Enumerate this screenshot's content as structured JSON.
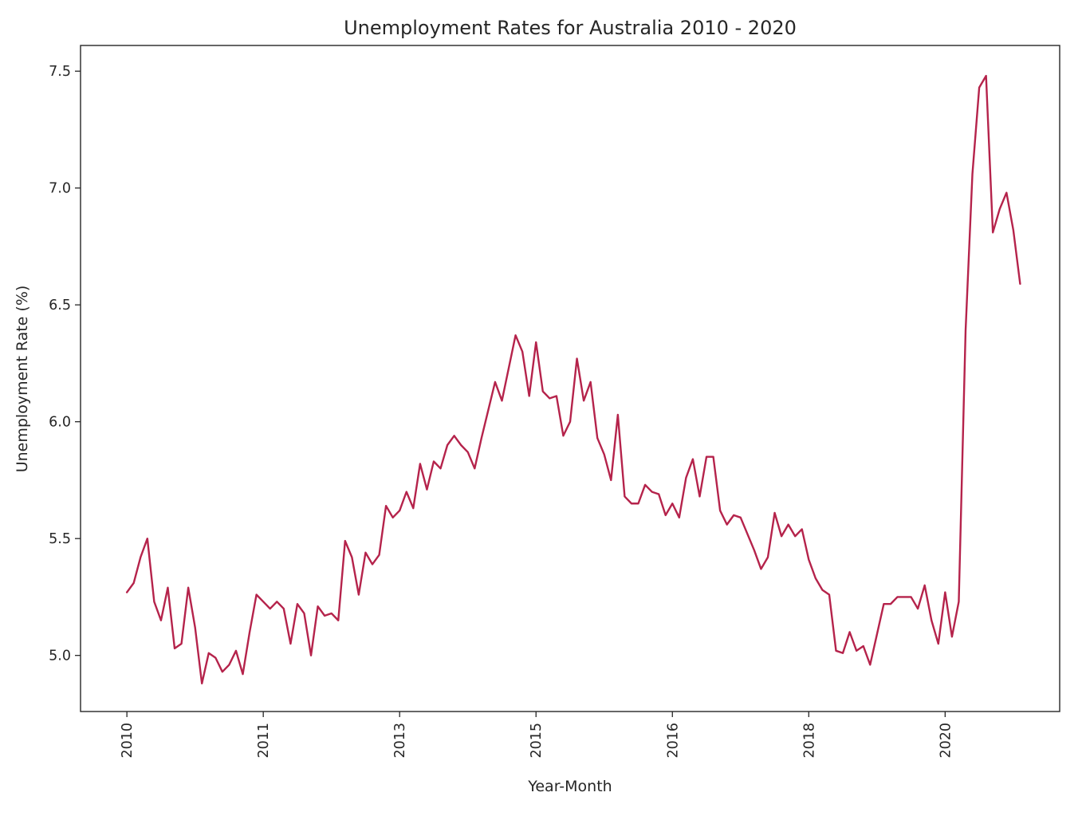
{
  "chart_data": {
    "type": "line",
    "title": "Unemployment Rates for Australia 2010 - 2020",
    "xlabel": "Year-Month",
    "ylabel": "Unemployment Rate (%)",
    "ylim": [
      4.76,
      7.61
    ],
    "y_ticks": [
      5.0,
      5.5,
      6.0,
      6.5,
      7.0,
      7.5
    ],
    "y_tick_labels": [
      "5.0",
      "5.5",
      "6.0",
      "6.5",
      "7.0",
      "7.5"
    ],
    "x_ticks": [
      0,
      20,
      40,
      60,
      80,
      100,
      120
    ],
    "x_tick_labels": [
      "2010",
      "2011",
      "2013",
      "2015",
      "2016",
      "2018",
      "2020"
    ],
    "xlim": [
      -6.8,
      136.8
    ],
    "grid": false,
    "line_color": "#B5234B",
    "series": [
      {
        "values": [
          5.27,
          5.31,
          5.42,
          5.5,
          5.23,
          5.15,
          5.29,
          5.03,
          5.05,
          5.29,
          5.12,
          4.88,
          5.01,
          4.99,
          4.93,
          4.96,
          5.02,
          4.92,
          5.1,
          5.26,
          5.23,
          5.2,
          5.23,
          5.2,
          5.05,
          5.22,
          5.18,
          5.0,
          5.21,
          5.17,
          5.18,
          5.15,
          5.49,
          5.42,
          5.26,
          5.44,
          5.39,
          5.43,
          5.64,
          5.59,
          5.62,
          5.7,
          5.63,
          5.82,
          5.71,
          5.83,
          5.8,
          5.9,
          5.94,
          5.9,
          5.87,
          5.8,
          5.93,
          6.05,
          6.17,
          6.09,
          6.23,
          6.37,
          6.3,
          6.11,
          6.34,
          6.13,
          6.1,
          6.11,
          5.94,
          6.0,
          6.27,
          6.09,
          6.17,
          5.93,
          5.86,
          5.75,
          6.03,
          5.68,
          5.65,
          5.65,
          5.73,
          5.7,
          5.69,
          5.6,
          5.65,
          5.59,
          5.76,
          5.84,
          5.68,
          5.85,
          5.85,
          5.62,
          5.56,
          5.6,
          5.59,
          5.52,
          5.45,
          5.37,
          5.42,
          5.61,
          5.51,
          5.56,
          5.51,
          5.54,
          5.41,
          5.33,
          5.28,
          5.26,
          5.02,
          5.01,
          5.1,
          5.02,
          5.04,
          4.96,
          5.09,
          5.22,
          5.22,
          5.25,
          5.25,
          5.25,
          5.2,
          5.3,
          5.15,
          5.05,
          5.27,
          5.08,
          5.23,
          6.39,
          7.06,
          7.43,
          7.48,
          6.81,
          6.91,
          6.98,
          6.82,
          6.59
        ]
      }
    ]
  }
}
